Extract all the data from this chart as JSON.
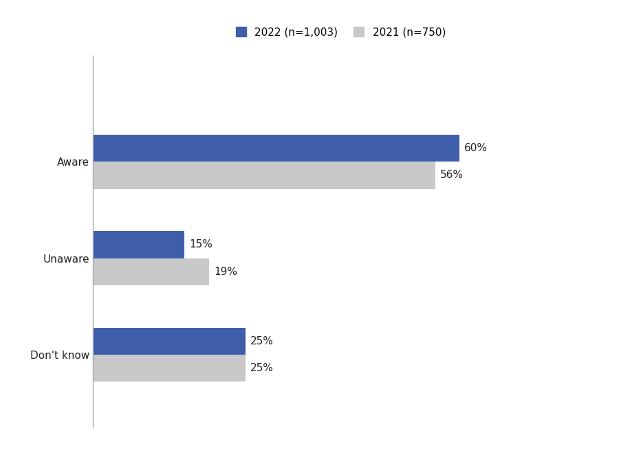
{
  "categories": [
    "Don't know",
    "Unaware",
    "Aware"
  ],
  "values_2022": [
    25,
    15,
    60
  ],
  "values_2021": [
    25,
    19,
    56
  ],
  "labels_2022": [
    "25%",
    "15%",
    "60%"
  ],
  "labels_2021": [
    "25%",
    "19%",
    "56%"
  ],
  "color_2022": "#3F5FAA",
  "color_2021": "#C8C8C8",
  "legend_2022": "2022 (n=1,003)",
  "legend_2021": "2021 (n=750)",
  "bar_height": 0.28,
  "xlim": [
    0,
    78
  ],
  "label_fontsize": 11,
  "tick_fontsize": 11,
  "legend_fontsize": 11,
  "background_color": "#ffffff"
}
